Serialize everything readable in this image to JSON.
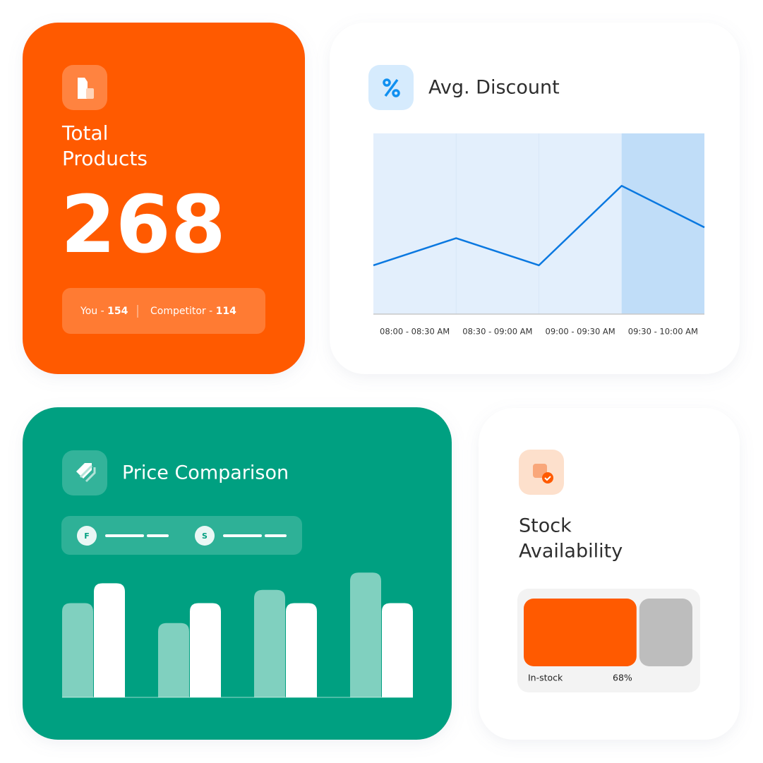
{
  "total_products": {
    "title_lines": [
      "Total",
      "Products"
    ],
    "value": 268,
    "you_label": "You -",
    "you_value": 154,
    "competitor_label": "Competitor -",
    "competitor_value": 114
  },
  "avg_discount": {
    "title": "Avg. Discount",
    "chart_data": {
      "type": "line",
      "categories": [
        "08:00 - 08:30 AM",
        "08:30 - 09:00 AM",
        "09:00 - 09:30 AM",
        "09:30 - 10:00 AM"
      ],
      "highlight_category": 3,
      "x": [
        0,
        1,
        2,
        3,
        4
      ],
      "xlim": [
        0,
        4
      ],
      "values": [
        27,
        42,
        27,
        71,
        48
      ],
      "ylim": [
        0,
        100
      ],
      "color": "#0a78e0"
    }
  },
  "price_comparison": {
    "title": "Price Comparison",
    "chart_data": {
      "type": "bar",
      "ylim": [
        0,
        100
      ],
      "series": [
        {
          "name": "F",
          "color": "#80d0bf",
          "values": [
            71,
            56,
            81,
            94
          ]
        },
        {
          "name": "S",
          "color": "#ffffff",
          "values": [
            86,
            71,
            71,
            71
          ]
        }
      ]
    }
  },
  "stock_availability": {
    "title_lines": [
      "Stock",
      "Availability"
    ],
    "chart_data": {
      "type": "stacked-bar",
      "categories": [
        "In-stock",
        null
      ],
      "values": [
        68,
        32
      ],
      "value_labels": [
        "68%",
        null
      ],
      "colors": [
        "#ff5a00",
        "#bdbdbd"
      ],
      "xlim": [
        0,
        100
      ]
    }
  }
}
